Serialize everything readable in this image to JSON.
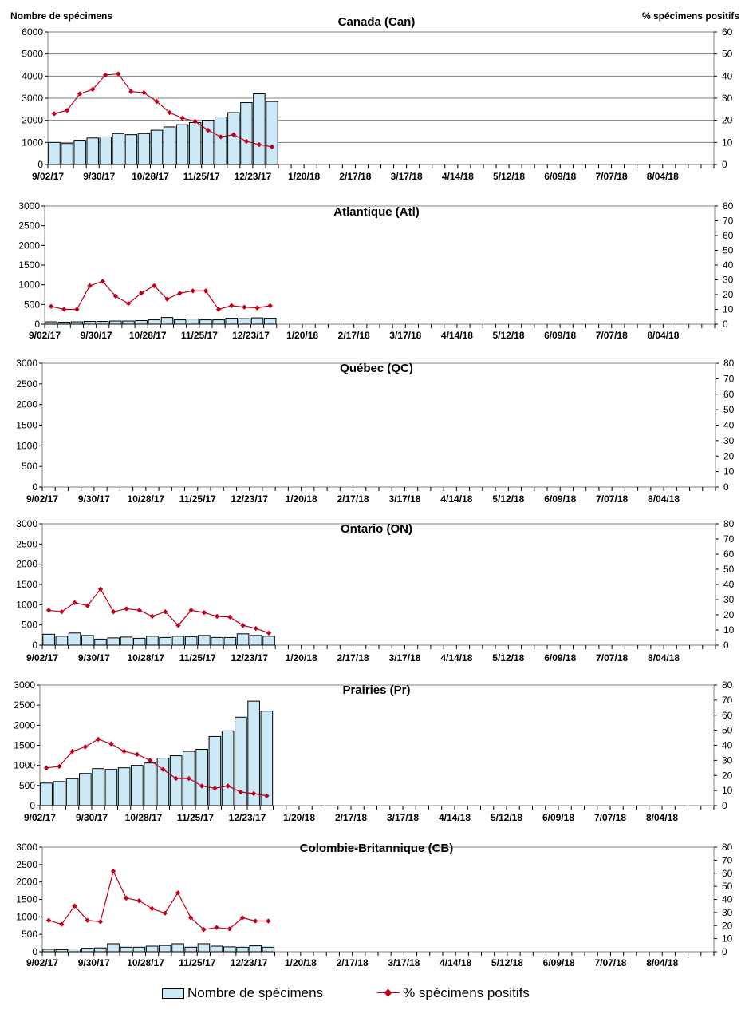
{
  "header": {
    "left_axis_title": "Nombre de spécimens",
    "right_axis_title": "% spécimens positifs"
  },
  "legend": {
    "bars_label": "Nombre de spécimens",
    "line_label": "% spécimens positifs"
  },
  "colors": {
    "bar_fill": "#cce9f8",
    "bar_stroke": "#000000",
    "line": "#c0001a"
  },
  "chart_data": [
    {
      "type": "bar",
      "title": "Canada (Can)",
      "x_tick_labels": [
        "9/02/17",
        "9/30/17",
        "10/28/17",
        "11/25/17",
        "12/23/17",
        "1/20/18",
        "2/17/18",
        "3/17/18",
        "4/14/18",
        "5/12/18",
        "6/09/18",
        "7/07/18",
        "8/04/18"
      ],
      "weeks_total": 52,
      "ylim": [
        0,
        6000
      ],
      "yticks": [
        0,
        1000,
        2000,
        3000,
        4000,
        5000,
        6000
      ],
      "y2lim": [
        0,
        60
      ],
      "y2ticks": [
        0,
        10,
        20,
        30,
        40,
        50,
        60
      ],
      "grid": true,
      "series": [
        {
          "name": "Nombre de spécimens",
          "type": "bar",
          "values": [
            1000,
            950,
            1100,
            1200,
            1250,
            1400,
            1350,
            1400,
            1550,
            1700,
            1800,
            1900,
            2000,
            2150,
            2350,
            2800,
            3200,
            2850
          ]
        },
        {
          "name": "% spécimens positifs",
          "type": "line",
          "values": [
            23,
            24.5,
            32,
            34,
            40.5,
            41,
            33,
            32.5,
            28.5,
            23.5,
            21,
            19.5,
            15.5,
            12.5,
            13.5,
            10.5,
            9,
            8
          ]
        }
      ]
    },
    {
      "type": "bar",
      "title": "Atlantique (Atl)",
      "x_tick_labels": [
        "9/02/17",
        "9/30/17",
        "10/28/17",
        "11/25/17",
        "12/23/17",
        "1/20/18",
        "2/17/18",
        "3/17/18",
        "4/14/18",
        "5/12/18",
        "6/09/18",
        "7/07/18",
        "8/04/18"
      ],
      "weeks_total": 52,
      "ylim": [
        0,
        3000
      ],
      "yticks": [
        0,
        500,
        1000,
        1500,
        2000,
        2500,
        3000
      ],
      "y2lim": [
        0,
        80
      ],
      "y2ticks": [
        0,
        10,
        20,
        30,
        40,
        50,
        60,
        70,
        80
      ],
      "grid": false,
      "series": [
        {
          "name": "Nombre de spécimens",
          "type": "bar",
          "values": [
            60,
            50,
            60,
            70,
            70,
            80,
            80,
            90,
            110,
            170,
            110,
            130,
            110,
            110,
            150,
            140,
            160,
            150
          ]
        },
        {
          "name": "% spécimens positifs",
          "type": "line",
          "values": [
            12,
            10,
            10,
            26,
            29,
            19,
            14,
            21,
            26,
            17,
            21,
            22.5,
            22.5,
            10,
            12.5,
            11.5,
            11,
            12.5
          ]
        }
      ]
    },
    {
      "type": "bar",
      "title": "Québec (QC)",
      "x_tick_labels": [
        "9/02/17",
        "9/30/17",
        "10/28/17",
        "11/25/17",
        "12/23/17",
        "1/20/18",
        "2/17/18",
        "3/17/18",
        "4/14/18",
        "5/12/18",
        "6/09/18",
        "7/07/18",
        "8/04/18"
      ],
      "weeks_total": 52,
      "ylim": [
        0,
        3000
      ],
      "yticks": [
        0,
        500,
        1000,
        1500,
        2000,
        2500,
        3000
      ],
      "y2lim": [
        0,
        80
      ],
      "y2ticks": [
        0,
        10,
        20,
        30,
        40,
        50,
        60,
        70,
        80
      ],
      "grid": false,
      "series": []
    },
    {
      "type": "bar",
      "title": "Ontario (ON)",
      "x_tick_labels": [
        "9/02/17",
        "9/30/17",
        "10/28/17",
        "11/25/17",
        "12/23/17",
        "1/20/18",
        "2/17/18",
        "3/17/18",
        "4/14/18",
        "5/12/18",
        "6/09/18",
        "7/07/18",
        "8/04/18"
      ],
      "weeks_total": 52,
      "ylim": [
        0,
        3000
      ],
      "yticks": [
        0,
        500,
        1000,
        1500,
        2000,
        2500,
        3000
      ],
      "y2lim": [
        0,
        80
      ],
      "y2ticks": [
        0,
        10,
        20,
        30,
        40,
        50,
        60,
        70,
        80
      ],
      "grid": false,
      "series": [
        {
          "name": "Nombre de spécimens",
          "type": "bar",
          "values": [
            270,
            220,
            300,
            240,
            150,
            180,
            200,
            170,
            220,
            190,
            220,
            210,
            240,
            190,
            190,
            280,
            240,
            220
          ]
        },
        {
          "name": "% spécimens positifs",
          "type": "line",
          "values": [
            23,
            22,
            28,
            26,
            37,
            22,
            24,
            23,
            19,
            22,
            13,
            23,
            21.5,
            19,
            18.5,
            13,
            11,
            8
          ]
        }
      ]
    },
    {
      "type": "bar",
      "title": "Prairies (Pr)",
      "x_tick_labels": [
        "9/02/17",
        "9/30/17",
        "10/28/17",
        "11/25/17",
        "12/23/17",
        "1/20/18",
        "2/17/18",
        "3/17/18",
        "4/14/18",
        "5/12/18",
        "6/09/18",
        "7/07/18",
        "8/04/18"
      ],
      "weeks_total": 52,
      "ylim": [
        0,
        3000
      ],
      "yticks": [
        0,
        500,
        1000,
        1500,
        2000,
        2500,
        3000
      ],
      "y2lim": [
        0,
        80
      ],
      "y2ticks": [
        0,
        10,
        20,
        30,
        40,
        50,
        60,
        70,
        80
      ],
      "grid": false,
      "series": [
        {
          "name": "Nombre de spécimens",
          "type": "bar",
          "values": [
            560,
            600,
            670,
            800,
            920,
            900,
            940,
            1000,
            1060,
            1180,
            1240,
            1350,
            1400,
            1720,
            1860,
            2200,
            2600,
            2350
          ]
        },
        {
          "name": "% spécimens positifs",
          "type": "line",
          "values": [
            25,
            26,
            36,
            39,
            44,
            41,
            36,
            34,
            30,
            24,
            18,
            18,
            13,
            11.5,
            13,
            9,
            8,
            6.5
          ]
        }
      ]
    },
    {
      "type": "bar",
      "title": "Colombie-Britannique (CB)",
      "x_tick_labels": [
        "9/02/17",
        "9/30/17",
        "10/28/17",
        "11/25/17",
        "12/23/17",
        "1/20/18",
        "2/17/18",
        "3/17/18",
        "4/14/18",
        "5/12/18",
        "6/09/18",
        "7/07/18",
        "8/04/18"
      ],
      "weeks_total": 52,
      "ylim": [
        0,
        3000
      ],
      "yticks": [
        0,
        500,
        1000,
        1500,
        2000,
        2500,
        3000
      ],
      "y2lim": [
        0,
        80
      ],
      "y2ticks": [
        0,
        10,
        20,
        30,
        40,
        50,
        60,
        70,
        80
      ],
      "grid": false,
      "series": [
        {
          "name": "Nombre de spécimens",
          "type": "bar",
          "values": [
            70,
            60,
            80,
            100,
            110,
            230,
            130,
            130,
            160,
            180,
            230,
            130,
            230,
            160,
            140,
            130,
            170,
            130
          ]
        },
        {
          "name": "% spécimens positifs",
          "type": "line",
          "values": [
            24,
            21,
            35,
            24,
            23,
            61.5,
            41,
            39,
            33,
            29.5,
            45,
            26,
            17,
            18.5,
            17.5,
            26,
            23.5,
            23.5
          ]
        }
      ]
    }
  ]
}
